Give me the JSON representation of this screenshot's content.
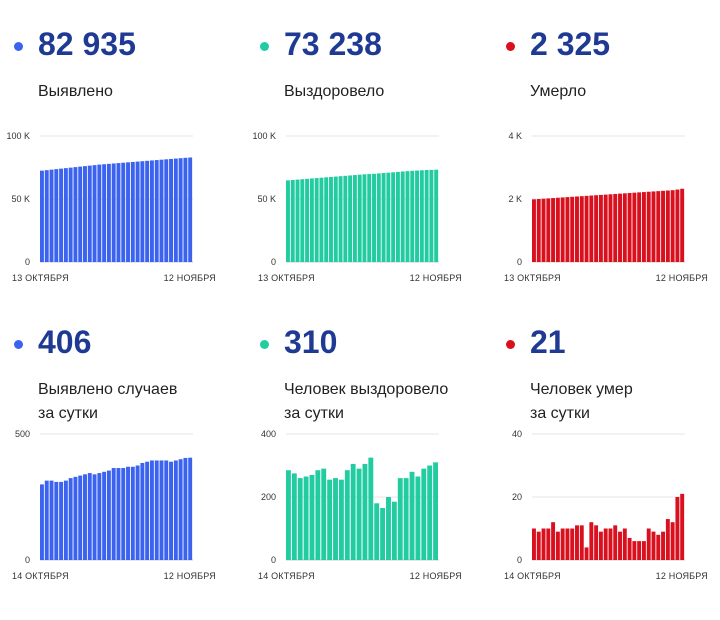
{
  "colors": {
    "blue": "#3b63f0",
    "teal": "#22ccA0",
    "red": "#d9101e",
    "number": "#1f3a93"
  },
  "panels": [
    {
      "value": "82 935",
      "label": "Выявлено",
      "color": "#3b63f0"
    },
    {
      "value": "73 238",
      "label": "Выздоровело",
      "color": "#22cca0"
    },
    {
      "value": "2 325",
      "label": "Умерло",
      "color": "#d9101e"
    },
    {
      "value": "406",
      "label": "Выявлено случаев\nза сутки",
      "color": "#3b63f0"
    },
    {
      "value": "310",
      "label": "Человек выздоровело\nза сутки",
      "color": "#22cca0"
    },
    {
      "value": "21",
      "label": "Человек умер\nза сутки",
      "color": "#d9101e"
    }
  ],
  "chart_data": [
    {
      "type": "bar",
      "color": "#3b63f0",
      "yticks": [
        "100 K",
        "50 K",
        "0"
      ],
      "ylim": [
        0,
        100000
      ],
      "xlabels": [
        "13 ОКТЯБРЯ",
        "12 НОЯБРЯ"
      ],
      "values": [
        72500,
        72900,
        73300,
        73700,
        74100,
        74500,
        74900,
        75300,
        75700,
        76100,
        76500,
        76900,
        77300,
        77600,
        77900,
        78200,
        78500,
        78800,
        79100,
        79400,
        79700,
        80000,
        80300,
        80600,
        80900,
        81200,
        81500,
        81800,
        82100,
        82400,
        82700,
        82935
      ]
    },
    {
      "type": "bar",
      "color": "#22cca0",
      "yticks": [
        "100 K",
        "50 K",
        "0"
      ],
      "ylim": [
        0,
        100000
      ],
      "xlabels": [
        "13 ОКТЯБРЯ",
        "12 НОЯБРЯ"
      ],
      "values": [
        64800,
        65100,
        65400,
        65700,
        66000,
        66300,
        66600,
        66900,
        67200,
        67500,
        67800,
        68100,
        68400,
        68700,
        69000,
        69300,
        69600,
        69800,
        70000,
        70300,
        70600,
        70900,
        71200,
        71500,
        71800,
        72100,
        72400,
        72600,
        72800,
        73000,
        73100,
        73238
      ]
    },
    {
      "type": "bar",
      "color": "#d9101e",
      "yticks": [
        "4 K",
        "2 K",
        "0"
      ],
      "ylim": [
        0,
        4000
      ],
      "xlabels": [
        "13 ОКТЯБРЯ",
        "12 НОЯБРЯ"
      ],
      "values": [
        1990,
        2000,
        2010,
        2020,
        2030,
        2040,
        2050,
        2060,
        2070,
        2080,
        2090,
        2100,
        2110,
        2120,
        2130,
        2140,
        2150,
        2160,
        2170,
        2180,
        2190,
        2200,
        2210,
        2220,
        2230,
        2240,
        2250,
        2260,
        2270,
        2280,
        2300,
        2325
      ]
    },
    {
      "type": "bar",
      "color": "#3b63f0",
      "yticks": [
        "500",
        "0"
      ],
      "ylim": [
        0,
        500
      ],
      "xlabels": [
        "14 ОКТЯБРЯ",
        "12 НОЯБРЯ"
      ],
      "values": [
        300,
        315,
        315,
        310,
        310,
        315,
        325,
        330,
        335,
        340,
        345,
        340,
        345,
        350,
        355,
        365,
        365,
        365,
        370,
        370,
        375,
        385,
        390,
        395,
        395,
        395,
        395,
        390,
        395,
        400,
        405,
        406
      ]
    },
    {
      "type": "bar",
      "color": "#22cca0",
      "yticks": [
        "400",
        "200",
        "0"
      ],
      "ylim": [
        0,
        400
      ],
      "xlabels": [
        "14 ОКТЯБРЯ",
        "12 НОЯБРЯ"
      ],
      "values": [
        285,
        275,
        260,
        265,
        270,
        285,
        290,
        255,
        260,
        255,
        285,
        305,
        290,
        305,
        325,
        180,
        165,
        200,
        185,
        260,
        260,
        280,
        265,
        290,
        300,
        310
      ]
    },
    {
      "type": "bar",
      "color": "#d9101e",
      "yticks": [
        "40",
        "20",
        "0"
      ],
      "ylim": [
        0,
        40
      ],
      "xlabels": [
        "14 ОКТЯБРЯ",
        "12 НОЯБРЯ"
      ],
      "values": [
        10,
        9,
        10,
        10,
        12,
        9,
        10,
        10,
        10,
        11,
        11,
        4,
        12,
        11,
        9,
        10,
        10,
        11,
        9,
        10,
        7,
        6,
        6,
        6,
        10,
        9,
        8,
        9,
        13,
        12,
        20,
        21
      ]
    }
  ]
}
